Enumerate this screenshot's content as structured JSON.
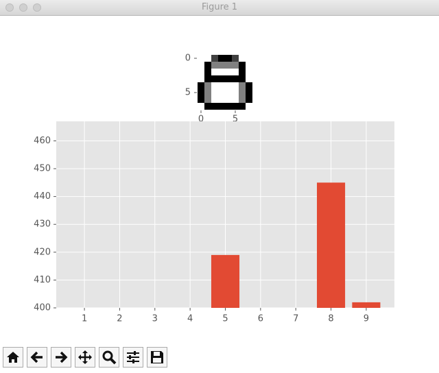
{
  "window": {
    "title": "Figure 1"
  },
  "chart_data": [
    {
      "type": "image",
      "cmap": "gray_r",
      "image": [
        [
          0,
          0,
          12,
          16,
          16,
          12,
          0,
          0
        ],
        [
          0,
          16,
          8,
          8,
          8,
          8,
          16,
          0
        ],
        [
          0,
          16,
          0,
          0,
          0,
          0,
          16,
          0
        ],
        [
          0,
          16,
          16,
          16,
          16,
          16,
          16,
          0
        ],
        [
          16,
          8,
          0,
          0,
          0,
          0,
          8,
          16
        ],
        [
          16,
          8,
          0,
          0,
          0,
          0,
          8,
          16
        ],
        [
          16,
          8,
          0,
          0,
          0,
          0,
          8,
          16
        ],
        [
          0,
          16,
          16,
          16,
          16,
          16,
          16,
          0
        ]
      ],
      "xlim": [
        -0.5,
        7.5
      ],
      "ylim": [
        7.5,
        -0.5
      ],
      "xticks": [
        0,
        5
      ],
      "yticks": [
        0,
        5
      ]
    },
    {
      "type": "bar",
      "x": [
        5,
        8,
        9
      ],
      "values": [
        419,
        445,
        402
      ],
      "color": "#E24A33",
      "xlim": [
        0.2,
        9.8
      ],
      "xticks": [
        1,
        2,
        3,
        4,
        5,
        6,
        7,
        8,
        9
      ],
      "ylim": [
        400,
        467
      ],
      "yticks": [
        400,
        410,
        420,
        430,
        440,
        450,
        460
      ],
      "grid": true
    }
  ]
}
